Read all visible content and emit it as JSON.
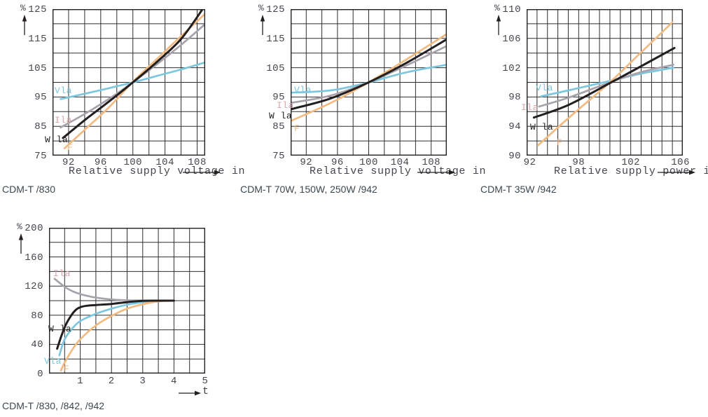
{
  "page_background": "#ffffff",
  "colors": {
    "grid": "#2e2e31",
    "frame": "#222225",
    "tick_text": "#45454d",
    "caption_text": "#3d474e",
    "arrow": "#231f20",
    "vla": "#7cc7dd",
    "ila_line": "#a8a3aa",
    "ila_label": "#d5a6ab",
    "wla": "#231f20",
    "f": "#f2ba80"
  },
  "chart_data": [
    {
      "type": "line",
      "caption": "CDM-T /830",
      "y_unit": "%",
      "xlabel": "Relative supply voltage in",
      "xlim": [
        90,
        109
      ],
      "ylim": [
        75,
        125
      ],
      "x_grid_step": 2,
      "y_grid_step": 5,
      "x_ticks": [
        92,
        96,
        100,
        104,
        108
      ],
      "y_ticks": [
        125,
        115,
        105,
        95,
        85,
        75
      ],
      "grid": true,
      "legend_position": "on-curve",
      "series": [
        {
          "name": "Vla",
          "color_key": "vla",
          "label_color_key": "vla",
          "points": [
            [
              91,
              94.3
            ],
            [
              94,
              96.1
            ],
            [
              97,
              98.0
            ],
            [
              100,
              100
            ],
            [
              103,
              102.2
            ],
            [
              106,
              104.4
            ],
            [
              109,
              106.8
            ]
          ]
        },
        {
          "name": "Ila",
          "color_key": "ila_line",
          "label_color_key": "ila_label",
          "points": [
            [
              91,
              84.6
            ],
            [
              94,
              89.2
            ],
            [
              97,
              94.3
            ],
            [
              100,
              100
            ],
            [
              103,
              106.2
            ],
            [
              106,
              112.8
            ],
            [
              109,
              119.9
            ]
          ]
        },
        {
          "name": "F",
          "color_key": "f",
          "label_color_key": "f",
          "points": [
            [
              91.5,
              77.5
            ],
            [
              94,
              83.8
            ],
            [
              97,
              91.4
            ],
            [
              100,
              100.2
            ],
            [
              103,
              108.0
            ],
            [
              106,
              115.8
            ],
            [
              108.9,
              123.2
            ]
          ]
        },
        {
          "name": "W la",
          "color_key": "wla",
          "label_color_key": "wla",
          "points": [
            [
              91.3,
              81.0
            ],
            [
              94,
              87.1
            ],
            [
              97,
              93.4
            ],
            [
              100,
              100
            ],
            [
              103,
              107.0
            ],
            [
              106,
              114.8
            ],
            [
              108.8,
              125.5
            ]
          ]
        }
      ]
    },
    {
      "type": "line",
      "caption": "CDM-T 70W, 150W, 250W /942",
      "y_unit": "%",
      "xlabel": "Relative supply voltage in",
      "xlim": [
        90,
        110
      ],
      "ylim": [
        75,
        125
      ],
      "x_grid_step": 2,
      "y_grid_step": 5,
      "x_ticks": [
        92,
        96,
        100,
        104,
        108
      ],
      "y_ticks": [
        125,
        115,
        105,
        95,
        85,
        75
      ],
      "grid": true,
      "legend_position": "on-curve",
      "series": [
        {
          "name": "Vla",
          "color_key": "vla",
          "label_color_key": "vla",
          "points": [
            [
              90,
              96.5
            ],
            [
              93,
              96.8
            ],
            [
              96,
              97.6
            ],
            [
              100,
              100
            ],
            [
              104,
              102.9
            ],
            [
              107,
              104.6
            ],
            [
              110,
              106.0
            ]
          ]
        },
        {
          "name": "Ila",
          "color_key": "ila_line",
          "label_color_key": "ila_label",
          "points": [
            [
              90,
              93.0
            ],
            [
              95,
              95.4
            ],
            [
              100,
              100
            ],
            [
              105,
              106.0
            ],
            [
              110,
              112.4
            ]
          ]
        },
        {
          "name": "F",
          "color_key": "f",
          "label_color_key": "f",
          "points": [
            [
              90,
              86.8
            ],
            [
              95,
              92.8
            ],
            [
              100,
              100
            ],
            [
              105,
              108.1
            ],
            [
              110,
              116.5
            ]
          ]
        },
        {
          "name": "W la",
          "color_key": "wla",
          "label_color_key": "wla",
          "points": [
            [
              90,
              90.8
            ],
            [
              95,
              94.4
            ],
            [
              100,
              100
            ],
            [
              105,
              106.9
            ],
            [
              110,
              114.7
            ]
          ]
        }
      ]
    },
    {
      "type": "line",
      "caption": "CDM-T 35W /942",
      "y_unit": "%",
      "xlabel": "Relative supply power in",
      "xlim": [
        92,
        107
      ],
      "ylim": [
        90,
        110
      ],
      "x_grid_step": 1,
      "y_grid_step": 2,
      "x_ticks": [
        92,
        98,
        102,
        106
      ],
      "y_ticks": [
        110,
        106,
        102,
        98,
        94,
        90
      ],
      "grid": true,
      "legend_position": "on-curve",
      "series": [
        {
          "name": "Vla",
          "color_key": "vla",
          "label_color_key": "vla",
          "points": [
            [
              93.4,
              98.1
            ],
            [
              96,
              98.9
            ],
            [
              100,
              100.2
            ],
            [
              103,
              101.2
            ],
            [
              106.1,
              102.0
            ]
          ]
        },
        {
          "name": "Ila",
          "color_key": "ila_line",
          "label_color_key": "ila_label",
          "points": [
            [
              93.2,
              96.7
            ],
            [
              96,
              97.9
            ],
            [
              100,
              100.0
            ],
            [
              103,
              101.4
            ],
            [
              106.1,
              102.4
            ]
          ]
        },
        {
          "name": "F",
          "color_key": "f",
          "label_color_key": "f",
          "points": [
            [
              93.1,
              91.4
            ],
            [
              96,
              95.1
            ],
            [
              100,
              100
            ],
            [
              103,
              104.1
            ],
            [
              106,
              108.2
            ]
          ]
        },
        {
          "name": "W la",
          "color_key": "wla",
          "label_color_key": "wla",
          "points": [
            [
              92.7,
              95.2
            ],
            [
              96,
              96.9
            ],
            [
              100,
              99.9
            ],
            [
              103,
              102.2
            ],
            [
              106.2,
              104.7
            ]
          ]
        }
      ]
    },
    {
      "type": "line",
      "caption": "CDM-T /830, /842, /942",
      "y_unit": "%",
      "xlabel": "t",
      "xlim": [
        0,
        5
      ],
      "ylim": [
        0,
        200
      ],
      "x_grid_step": 0.5,
      "y_grid_step": 20,
      "x_ticks": [
        1,
        2,
        3,
        4,
        5
      ],
      "y_ticks": [
        200,
        160,
        120,
        80,
        40,
        0
      ],
      "grid": true,
      "legend_position": "on-curve",
      "series": [
        {
          "name": "Ila",
          "color_key": "ila_line",
          "label_color_key": "ila_label",
          "points": [
            [
              0.18,
              130
            ],
            [
              0.5,
              119
            ],
            [
              0.75,
              113
            ],
            [
              1,
              109
            ],
            [
              1.25,
              106.3
            ],
            [
              1.5,
              104.2
            ],
            [
              2,
              101.6
            ],
            [
              2.5,
              100.5
            ],
            [
              3,
              100.1
            ],
            [
              3.5,
              100
            ],
            [
              4,
              100
            ]
          ]
        },
        {
          "name": "Vla",
          "color_key": "vla",
          "label_color_key": "vla",
          "points": [
            [
              0.33,
              25
            ],
            [
              0.5,
              47
            ],
            [
              0.75,
              62
            ],
            [
              1,
              72
            ],
            [
              1.5,
              82
            ],
            [
              2,
              89
            ],
            [
              2.5,
              94.5
            ],
            [
              3,
              98
            ],
            [
              3.5,
              99.8
            ],
            [
              4,
              100
            ]
          ]
        },
        {
          "name": "F",
          "color_key": "f",
          "label_color_key": "f",
          "points": [
            [
              0.38,
              4
            ],
            [
              0.5,
              15
            ],
            [
              0.75,
              33
            ],
            [
              1,
              47
            ],
            [
              1.5,
              66
            ],
            [
              2,
              79
            ],
            [
              2.5,
              89
            ],
            [
              3,
              95
            ],
            [
              3.5,
              99
            ],
            [
              4,
              100
            ]
          ]
        },
        {
          "name": "W la",
          "color_key": "wla",
          "label_color_key": "wla",
          "points": [
            [
              0.26,
              34
            ],
            [
              0.4,
              52
            ],
            [
              0.55,
              68
            ],
            [
              0.7,
              79
            ],
            [
              0.85,
              87
            ],
            [
              1,
              91
            ],
            [
              1.2,
              93
            ],
            [
              1.5,
              94
            ],
            [
              2,
              95.5
            ],
            [
              2.5,
              98
            ],
            [
              3,
              99.7
            ],
            [
              3.5,
              100
            ],
            [
              4,
              100
            ]
          ]
        }
      ]
    }
  ]
}
